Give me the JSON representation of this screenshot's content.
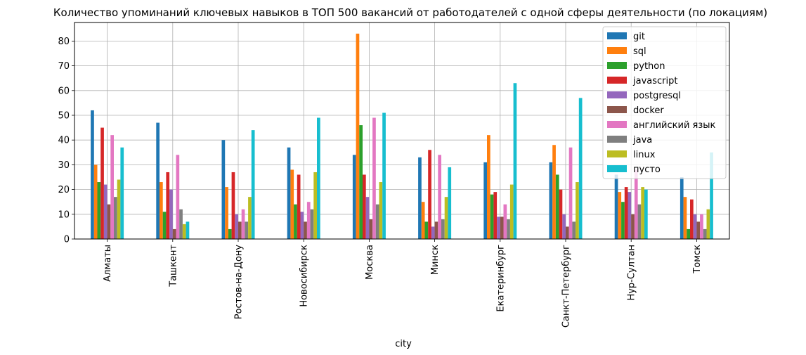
{
  "chart_data": {
    "type": "bar",
    "title": "Количество упоминаний ключевых навыков в ТОП 500 вакансий от работодателей с одной сферы деятельности (по локациям)",
    "xlabel": "city",
    "ylabel": "",
    "ylim": [
      0,
      87.5
    ],
    "yticks": [
      0,
      10,
      20,
      30,
      40,
      50,
      60,
      70,
      80
    ],
    "grid": true,
    "legend_position": "top-right",
    "categories": [
      "Алматы",
      "Ташкент",
      "Ростов-на-Дону",
      "Новосибирск",
      "Москва",
      "Минск",
      "Екатеринбург",
      "Санкт-Петербург",
      "Нур-Султан",
      "Томск"
    ],
    "series": [
      {
        "name": "git",
        "color": "#1f77b4",
        "values": [
          52,
          47,
          40,
          37,
          34,
          33,
          31,
          31,
          26,
          25
        ]
      },
      {
        "name": "sql",
        "color": "#ff7f0e",
        "values": [
          30,
          23,
          21,
          28,
          83,
          15,
          42,
          38,
          19,
          17
        ]
      },
      {
        "name": "python",
        "color": "#2ca02c",
        "values": [
          23,
          11,
          4,
          14,
          46,
          7,
          18,
          26,
          15,
          4
        ]
      },
      {
        "name": "javascript",
        "color": "#d62728",
        "values": [
          45,
          27,
          27,
          26,
          26,
          36,
          19,
          20,
          21,
          16
        ]
      },
      {
        "name": "postgresql",
        "color": "#9467bd",
        "values": [
          22,
          20,
          10,
          11,
          17,
          5,
          9,
          10,
          19,
          10
        ]
      },
      {
        "name": "docker",
        "color": "#8c564b",
        "values": [
          14,
          4,
          7,
          7,
          8,
          7,
          9,
          5,
          10,
          7
        ]
      },
      {
        "name": "английский язык",
        "color": "#e377c2",
        "values": [
          42,
          34,
          12,
          15,
          49,
          34,
          14,
          37,
          28,
          10
        ]
      },
      {
        "name": "java",
        "color": "#7f7f7f",
        "values": [
          17,
          12,
          7,
          12,
          14,
          8,
          8,
          7,
          14,
          4
        ]
      },
      {
        "name": "linux",
        "color": "#bcbd22",
        "values": [
          24,
          6,
          17,
          27,
          23,
          17,
          22,
          23,
          21,
          12
        ]
      },
      {
        "name": "пусто",
        "color": "#17becf",
        "values": [
          37,
          7,
          44,
          49,
          51,
          29,
          63,
          57,
          20,
          35
        ]
      }
    ]
  }
}
